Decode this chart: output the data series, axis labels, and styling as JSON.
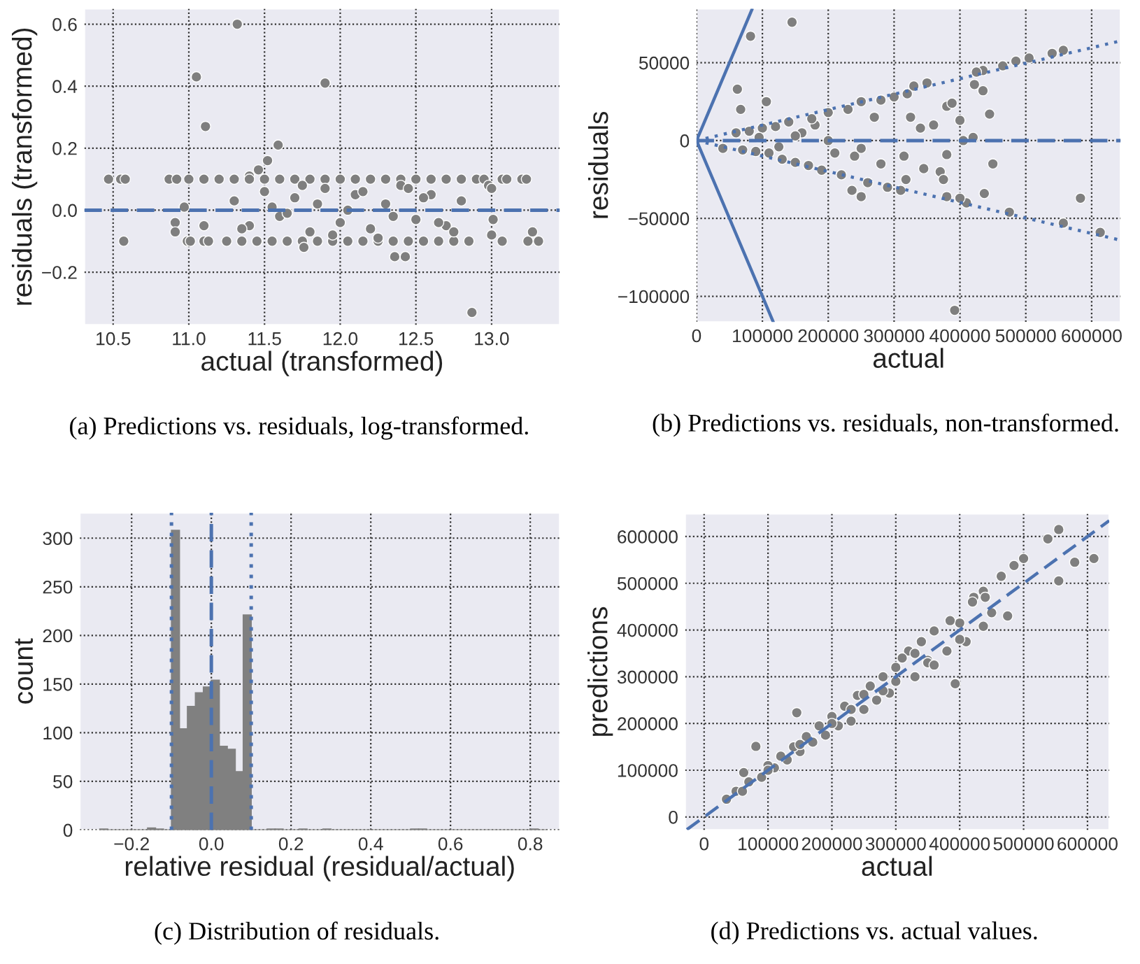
{
  "chart_data": [
    {
      "type": "scatter",
      "xlabel": "actual (transformed)",
      "ylabel": "residuals (transformed)",
      "xlim": [
        10.31,
        13.45
      ],
      "ylim": [
        -0.37,
        0.65
      ],
      "xticks": [
        10.5,
        {
          "value": 11,
          "label": "11.0"
        },
        11.5,
        {
          "value": 12,
          "label": "12.0"
        },
        12.5,
        {
          "value": 13,
          "label": "13.0"
        }
      ],
      "yticks": [
        {
          "value": -0.2,
          "label": "−0.2"
        },
        {
          "value": 0,
          "label": "0.0"
        },
        0.2,
        0.4,
        0.6
      ],
      "grid": true,
      "ref_lines": [
        {
          "axis": "y",
          "value": 0,
          "color": "#4c72b0",
          "line_style": "dashed"
        }
      ],
      "annotations": [
        "(a) Predictions vs. residuals, log-transformed."
      ],
      "series": [
        {
          "color": "#7f7f7f",
          "marker": "circle",
          "x": [
            11.32,
            11.05,
            11.9,
            11.11,
            11.59,
            11.52,
            11.46,
            11.4,
            10.47,
            10.55,
            10.58,
            10.57,
            10.87,
            10.92,
            11.0,
            10.97,
            10.91,
            10.91,
            10.99,
            11.01,
            11.1,
            11.1,
            11.13,
            11.1,
            11.2,
            11.3,
            11.4,
            11.5,
            11.6,
            11.7,
            11.8,
            11.9,
            12.0,
            12.1,
            12.2,
            12.3,
            12.4,
            12.5,
            12.6,
            12.7,
            12.8,
            12.9,
            11.25,
            11.35,
            11.45,
            11.55,
            11.65,
            11.75,
            11.85,
            11.95,
            12.05,
            12.15,
            12.25,
            12.35,
            12.45,
            12.55,
            12.65,
            12.75,
            12.85,
            12.95,
            12.98,
            13.0,
            13.01,
            13.0,
            13.07,
            13.1,
            13.2,
            13.23,
            13.07,
            13.24,
            13.27,
            13.31,
            12.87,
            12.43,
            12.36,
            11.76,
            11.3,
            11.4,
            11.5,
            11.6,
            11.7,
            11.8,
            11.9,
            12.0,
            12.1,
            12.2,
            12.3,
            12.4,
            12.5,
            12.6,
            12.7,
            12.8,
            11.35,
            11.55,
            11.75,
            11.95,
            12.15,
            12.35,
            12.55,
            12.75,
            11.65,
            11.85,
            12.05,
            12.25,
            12.45,
            12.65
          ],
          "values": [
            0.6,
            0.43,
            0.41,
            0.27,
            0.21,
            0.16,
            0.13,
            0.11,
            0.1,
            0.1,
            0.1,
            -0.1,
            0.1,
            0.1,
            0.1,
            0.01,
            -0.04,
            -0.07,
            -0.1,
            -0.1,
            -0.05,
            -0.1,
            -0.1,
            0.1,
            0.1,
            0.1,
            0.1,
            0.1,
            0.1,
            0.1,
            0.1,
            0.1,
            0.1,
            0.1,
            0.1,
            0.1,
            0.1,
            0.1,
            0.1,
            0.1,
            0.1,
            0.1,
            -0.1,
            -0.1,
            -0.1,
            -0.1,
            -0.1,
            -0.1,
            -0.1,
            -0.1,
            -0.1,
            -0.1,
            -0.1,
            -0.1,
            -0.1,
            -0.1,
            -0.1,
            -0.1,
            -0.1,
            0.1,
            0.08,
            0.07,
            -0.03,
            -0.08,
            0.1,
            0.1,
            0.1,
            0.1,
            -0.1,
            -0.1,
            -0.07,
            -0.1,
            -0.33,
            -0.15,
            -0.15,
            -0.12,
            0.03,
            -0.05,
            0.06,
            -0.02,
            0.04,
            -0.07,
            0.07,
            -0.04,
            0.05,
            -0.06,
            0.02,
            0.08,
            -0.03,
            0.05,
            -0.05,
            0.03,
            -0.06,
            0.01,
            0.08,
            -0.08,
            0.06,
            -0.02,
            0.04,
            -0.07,
            -0.01,
            0.02,
            0.0,
            -0.09,
            0.07,
            -0.04
          ]
        }
      ]
    },
    {
      "type": "scatter",
      "xlabel": "actual",
      "ylabel": "residuals",
      "xlim": [
        0,
        644000
      ],
      "ylim": [
        -116500,
        84700
      ],
      "xticks": [
        0,
        100000,
        200000,
        300000,
        400000,
        500000,
        600000
      ],
      "yticks": [
        {
          "value": -100000,
          "label": "−100000"
        },
        {
          "value": -50000,
          "label": "−50000"
        },
        0,
        50000
      ],
      "grid": true,
      "ref_lines": [
        {
          "axis": "y",
          "value": 0,
          "color": "#4c72b0",
          "line_style": "dashed"
        }
      ],
      "annotations": [
        "(b) Predictions vs. residuals, non-transformed."
      ],
      "series": [
        {
          "type": "line",
          "color": "#4c72b0",
          "line_style": "solid",
          "x": [
            0,
            84000
          ],
          "values": [
            0,
            84000
          ]
        },
        {
          "type": "line",
          "color": "#4c72b0",
          "line_style": "solid",
          "x": [
            0,
            116000
          ],
          "values": [
            0,
            -116000
          ]
        },
        {
          "type": "line",
          "color": "#4c72b0",
          "line_style": "dotted",
          "x": [
            0,
            644000
          ],
          "values": [
            0,
            64000
          ]
        },
        {
          "type": "line",
          "color": "#4c72b0",
          "line_style": "dotted",
          "x": [
            0,
            644000
          ],
          "values": [
            0,
            -64000
          ]
        },
        {
          "type": "scatter",
          "color": "#7f7f7f",
          "marker": "circle",
          "x": [
            145000,
            82000,
            62000,
            67000,
            106000,
            60000,
            40000,
            236000,
            250000,
            392000,
            583000,
            613000,
            557000,
            557000,
            540000,
            505000,
            485000,
            465000,
            435000,
            425000,
            422000,
            435000,
            445000,
            450000,
            437000,
            475000,
            410000,
            400000,
            380000,
            380000,
            388000,
            400000,
            405000,
            420000,
            370000,
            375000,
            380000,
            360000,
            345000,
            350000,
            330000,
            320000,
            340000,
            325000,
            315000,
            318000,
            310000,
            300000,
            290000,
            280000,
            270000,
            260000,
            250000,
            240000,
            230000,
            220000,
            200000,
            190000,
            180000,
            170000,
            160000,
            150000,
            140000,
            130000,
            120000,
            110000,
            100000,
            90000,
            80000,
            70000,
            200000,
            150000,
            250000,
            280000,
            210000,
            175000,
            125000,
            95000
          ],
          "values": [
            76000,
            67000,
            33000,
            20000,
            25000,
            5000,
            -5000,
            -32000,
            -36000,
            -109000,
            -37000,
            -59000,
            -53000,
            58000,
            56000,
            53000,
            51000,
            48000,
            45000,
            44000,
            36000,
            32000,
            17000,
            -15000,
            -34000,
            -46000,
            -40000,
            -37000,
            -36000,
            22000,
            24000,
            13000,
            0,
            2000,
            -20000,
            -25000,
            -9000,
            10000,
            -18000,
            37000,
            35000,
            30000,
            8000,
            15000,
            -10000,
            -25000,
            -32000,
            28000,
            -30000,
            26000,
            15000,
            -27000,
            25000,
            -10000,
            20000,
            -22000,
            18000,
            -19000,
            10000,
            -16000,
            5000,
            -14000,
            12000,
            -12000,
            9000,
            -8000,
            8000,
            -7000,
            6000,
            -6000,
            0,
            3000,
            -5000,
            -15000,
            -8000,
            14000,
            -4000,
            2000
          ]
        }
      ]
    },
    {
      "type": "histogram",
      "xlabel": "relative residual (residual/actual)",
      "ylabel": "count",
      "xlim": [
        -0.33,
        0.874
      ],
      "ylim": [
        0,
        326
      ],
      "xticks": [
        {
          "value": -0.2,
          "label": "−0.2"
        },
        {
          "value": 0,
          "label": "0.0"
        },
        0.2,
        0.4,
        0.6,
        0.8
      ],
      "yticks": [
        0,
        50,
        100,
        150,
        200,
        250,
        300
      ],
      "grid": true,
      "color": "#808080",
      "ref_lines": [
        {
          "axis": "x",
          "value": -0.1,
          "color": "#4c72b0",
          "line_style": "dotted"
        },
        {
          "axis": "x",
          "value": 0,
          "color": "#4c72b0",
          "line_style": "dashed"
        },
        {
          "axis": "x",
          "value": 0.1,
          "color": "#4c72b0",
          "line_style": "dotted"
        }
      ],
      "annotations": [
        "(c) Distribution of residuals."
      ],
      "bins": [
        -0.28,
        -0.26,
        -0.24,
        -0.22,
        -0.2,
        -0.18,
        -0.16,
        -0.14,
        -0.12,
        -0.1,
        -0.08,
        -0.06,
        -0.04,
        -0.02,
        0,
        0.02,
        0.04,
        0.06,
        0.08,
        0.1,
        0.12,
        0.14,
        0.16,
        0.18,
        0.2,
        0.22,
        0.24,
        0.26,
        0.28,
        0.3,
        0.32,
        0.34,
        0.36,
        0.38,
        0.4,
        0.42,
        0.44,
        0.46,
        0.48,
        0.5,
        0.52,
        0.54,
        0.56,
        0.58,
        0.6,
        0.62,
        0.64,
        0.66,
        0.68,
        0.7,
        0.72,
        0.74,
        0.76,
        0.78,
        0.8,
        0.82,
        0.84
      ],
      "values": [
        1,
        0,
        0,
        0,
        0,
        0,
        2,
        1,
        0,
        308,
        104,
        127,
        141,
        147,
        154,
        86,
        83,
        60,
        221,
        0,
        0,
        1,
        1,
        0,
        0,
        1,
        0,
        0,
        1,
        0,
        0,
        0,
        0,
        0,
        0,
        0,
        0,
        0,
        0,
        1,
        1,
        0,
        0,
        0,
        0,
        0,
        0,
        0,
        0,
        0,
        0,
        0,
        0,
        0,
        1,
        0
      ]
    },
    {
      "type": "scatter",
      "xlabel": "actual",
      "ylabel": "predictions",
      "xlim": [
        -29700,
        634000
      ],
      "ylim": [
        -27900,
        648600
      ],
      "xticks": [
        0,
        100000,
        200000,
        300000,
        400000,
        500000,
        600000
      ],
      "yticks": [
        0,
        100000,
        200000,
        300000,
        400000,
        500000,
        600000
      ],
      "grid": true,
      "annotations": [
        "(d) Predictions vs. actual values."
      ],
      "series": [
        {
          "type": "line",
          "color": "#4c72b0",
          "line_style": "dashed",
          "x": [
            -27000,
            634000
          ],
          "values": [
            -27000,
            634000
          ]
        },
        {
          "type": "scatter",
          "color": "#7f7f7f",
          "marker": "circle",
          "x": [
            35000,
            50000,
            62000,
            81000,
            145000,
            393000,
            437000,
            475000,
            437000,
            422000,
            465000,
            485000,
            500000,
            538000,
            555000,
            555000,
            580000,
            610000,
            450000,
            440000,
            420000,
            410000,
            400000,
            385000,
            380000,
            360000,
            350000,
            340000,
            330000,
            320000,
            310000,
            300000,
            290000,
            280000,
            270000,
            260000,
            250000,
            240000,
            230000,
            220000,
            210000,
            200000,
            190000,
            180000,
            170000,
            160000,
            150000,
            140000,
            130000,
            120000,
            110000,
            100000,
            90000,
            70000,
            60000,
            250000,
            200000,
            300000,
            350000,
            400000,
            280000,
            150000,
            100000,
            230000,
            330000,
            360000
          ],
          "values": [
            38000,
            55000,
            95000,
            151000,
            223000,
            285000,
            408000,
            430000,
            483000,
            470000,
            515000,
            538000,
            553000,
            595000,
            615000,
            505000,
            545000,
            553000,
            437000,
            470000,
            460000,
            375000,
            415000,
            420000,
            355000,
            398000,
            335000,
            375000,
            300000,
            355000,
            340000,
            320000,
            265000,
            300000,
            250000,
            280000,
            230000,
            260000,
            205000,
            237000,
            195000,
            215000,
            175000,
            195000,
            160000,
            172000,
            140000,
            150000,
            122000,
            130000,
            105000,
            110000,
            85000,
            75000,
            55000,
            262000,
            200000,
            290000,
            330000,
            380000,
            270000,
            155000,
            100000,
            230000,
            350000,
            325000
          ]
        }
      ]
    }
  ]
}
